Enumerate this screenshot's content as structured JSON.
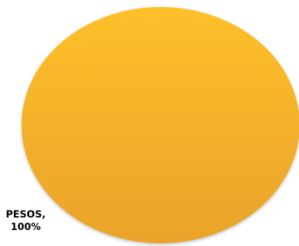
{
  "chart_data": {
    "type": "pie",
    "title": "",
    "slices": [
      {
        "label": "PESOS",
        "value": 100,
        "value_text": "100%",
        "label_text": "PESOS,",
        "color": "#F8B527"
      }
    ],
    "legend": "none"
  },
  "colors": {
    "slice_top": "#FEC02A",
    "slice_bottom": "#E9A32A",
    "background": "#FFFFFF"
  }
}
